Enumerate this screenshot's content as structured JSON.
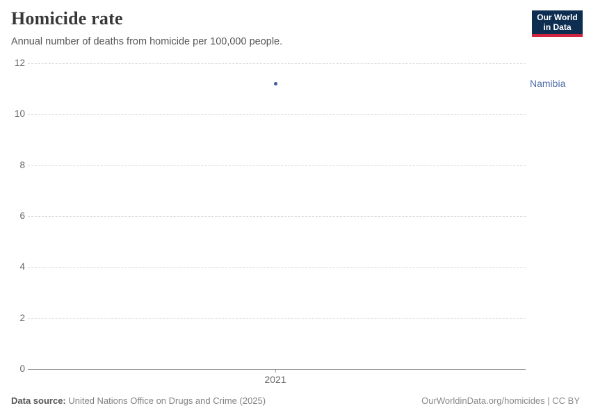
{
  "header": {
    "title": "Homicide rate",
    "subtitle": "Annual number of deaths from homicide per 100,000 people."
  },
  "logo": {
    "line1": "Our World",
    "line2": "in Data",
    "bg_color": "#0d2d51",
    "accent_color": "#cf2440"
  },
  "chart_data": {
    "type": "scatter",
    "title": "Homicide rate",
    "subtitle": "Annual number of deaths from homicide per 100,000 people.",
    "xlabel": "",
    "ylabel": "",
    "x": [
      2021
    ],
    "x_tick_labels": [
      "2021"
    ],
    "y_ticks": [
      0,
      2,
      4,
      6,
      8,
      10,
      12
    ],
    "ylim": [
      0,
      12
    ],
    "grid": "horizontal-dashed",
    "legend_position": "right-inline-entity-label",
    "series": [
      {
        "name": "Namibia",
        "x": [
          2021
        ],
        "values": [
          11.2
        ],
        "color": "#3d5f9e"
      }
    ],
    "entity_label_color": "#4f6ea8"
  },
  "footer": {
    "datasource_label": "Data source:",
    "datasource_value": " United Nations Office on Drugs and Crime (2025)",
    "credit": "OurWorldinData.org/homicides | CC BY"
  }
}
